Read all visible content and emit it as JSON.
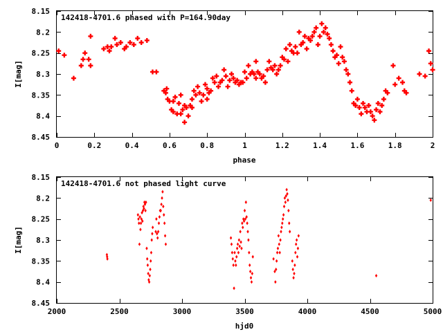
{
  "colors": {
    "point": "#ff0000",
    "axis": "#000000",
    "background": "#ffffff"
  },
  "chart_data": [
    {
      "type": "scatter",
      "title": "142418-4701.6 phased with P=164.90day",
      "xlabel": "phase",
      "ylabel": "I[mag]",
      "xlim": [
        0,
        2
      ],
      "ylim": [
        8.45,
        8.15
      ],
      "y_inverted": true,
      "grid": false,
      "legend": "none",
      "marker": "star",
      "xticks": [
        "0",
        "0.2",
        "0.4",
        "0.6",
        "0.8",
        "1",
        "1.2",
        "1.4",
        "1.6",
        "1.8",
        "2"
      ],
      "xtick_values": [
        0,
        0.2,
        0.4,
        0.6,
        0.8,
        1.0,
        1.2,
        1.4,
        1.6,
        1.8,
        2.0
      ],
      "yticks": [
        "8.15",
        "8.2",
        "8.25",
        "8.3",
        "8.35",
        "8.4",
        "8.45"
      ],
      "ytick_values": [
        8.15,
        8.2,
        8.25,
        8.3,
        8.35,
        8.4,
        8.45
      ],
      "points": [
        [
          0.01,
          8.245
        ],
        [
          0.04,
          8.255
        ],
        [
          0.09,
          8.31
        ],
        [
          0.13,
          8.28
        ],
        [
          0.14,
          8.265
        ],
        [
          0.15,
          8.25
        ],
        [
          0.17,
          8.265
        ],
        [
          0.18,
          8.28
        ],
        [
          0.18,
          8.21
        ],
        [
          0.25,
          8.24
        ],
        [
          0.27,
          8.235
        ],
        [
          0.28,
          8.245
        ],
        [
          0.29,
          8.235
        ],
        [
          0.31,
          8.215
        ],
        [
          0.32,
          8.23
        ],
        [
          0.34,
          8.225
        ],
        [
          0.36,
          8.24
        ],
        [
          0.37,
          8.235
        ],
        [
          0.39,
          8.225
        ],
        [
          0.41,
          8.23
        ],
        [
          0.43,
          8.215
        ],
        [
          0.45,
          8.225
        ],
        [
          0.48,
          8.22
        ],
        [
          0.51,
          8.295
        ],
        [
          0.53,
          8.295
        ],
        [
          0.57,
          8.34
        ],
        [
          0.58,
          8.345
        ],
        [
          0.585,
          8.335
        ],
        [
          0.59,
          8.36
        ],
        [
          0.6,
          8.365
        ],
        [
          0.61,
          8.385
        ],
        [
          0.62,
          8.39
        ],
        [
          0.62,
          8.365
        ],
        [
          0.63,
          8.355
        ],
        [
          0.64,
          8.395
        ],
        [
          0.65,
          8.37
        ],
        [
          0.66,
          8.35
        ],
        [
          0.66,
          8.395
        ],
        [
          0.67,
          8.385
        ],
        [
          0.68,
          8.375
        ],
        [
          0.68,
          8.415
        ],
        [
          0.69,
          8.38
        ],
        [
          0.7,
          8.4
        ],
        [
          0.71,
          8.375
        ],
        [
          0.72,
          8.38
        ],
        [
          0.72,
          8.36
        ],
        [
          0.73,
          8.34
        ],
        [
          0.74,
          8.35
        ],
        [
          0.75,
          8.33
        ],
        [
          0.76,
          8.345
        ],
        [
          0.77,
          8.365
        ],
        [
          0.78,
          8.35
        ],
        [
          0.79,
          8.325
        ],
        [
          0.8,
          8.36
        ],
        [
          0.8,
          8.335
        ],
        [
          0.81,
          8.345
        ],
        [
          0.82,
          8.34
        ],
        [
          0.83,
          8.31
        ],
        [
          0.84,
          8.32
        ],
        [
          0.85,
          8.305
        ],
        [
          0.86,
          8.33
        ],
        [
          0.87,
          8.32
        ],
        [
          0.88,
          8.315
        ],
        [
          0.89,
          8.29
        ],
        [
          0.9,
          8.305
        ],
        [
          0.91,
          8.33
        ],
        [
          0.92,
          8.315
        ],
        [
          0.93,
          8.3
        ],
        [
          0.94,
          8.31
        ],
        [
          0.95,
          8.32
        ],
        [
          0.96,
          8.315
        ],
        [
          0.97,
          8.325
        ],
        [
          0.98,
          8.32
        ],
        [
          0.99,
          8.32
        ],
        [
          1.0,
          8.295
        ],
        [
          1.01,
          8.31
        ],
        [
          1.02,
          8.28
        ],
        [
          1.03,
          8.3
        ],
        [
          1.04,
          8.295
        ],
        [
          1.05,
          8.3
        ],
        [
          1.06,
          8.27
        ],
        [
          1.06,
          8.31
        ],
        [
          1.07,
          8.295
        ],
        [
          1.08,
          8.3
        ],
        [
          1.09,
          8.31
        ],
        [
          1.1,
          8.305
        ],
        [
          1.11,
          8.32
        ],
        [
          1.12,
          8.29
        ],
        [
          1.13,
          8.27
        ],
        [
          1.14,
          8.285
        ],
        [
          1.15,
          8.29
        ],
        [
          1.16,
          8.28
        ],
        [
          1.17,
          8.3
        ],
        [
          1.18,
          8.29
        ],
        [
          1.19,
          8.28
        ],
        [
          1.2,
          8.26
        ],
        [
          1.21,
          8.265
        ],
        [
          1.22,
          8.24
        ],
        [
          1.23,
          8.27
        ],
        [
          1.24,
          8.23
        ],
        [
          1.25,
          8.245
        ],
        [
          1.26,
          8.25
        ],
        [
          1.27,
          8.235
        ],
        [
          1.28,
          8.25
        ],
        [
          1.29,
          8.2
        ],
        [
          1.3,
          8.23
        ],
        [
          1.31,
          8.225
        ],
        [
          1.32,
          8.21
        ],
        [
          1.33,
          8.24
        ],
        [
          1.34,
          8.215
        ],
        [
          1.35,
          8.22
        ],
        [
          1.36,
          8.21
        ],
        [
          1.37,
          8.2
        ],
        [
          1.38,
          8.19
        ],
        [
          1.39,
          8.23
        ],
        [
          1.4,
          8.21
        ],
        [
          1.41,
          8.18
        ],
        [
          1.42,
          8.2
        ],
        [
          1.43,
          8.19
        ],
        [
          1.44,
          8.205
        ],
        [
          1.45,
          8.215
        ],
        [
          1.46,
          8.23
        ],
        [
          1.47,
          8.245
        ],
        [
          1.48,
          8.26
        ],
        [
          1.49,
          8.255
        ],
        [
          1.5,
          8.275
        ],
        [
          1.51,
          8.235
        ],
        [
          1.52,
          8.26
        ],
        [
          1.53,
          8.27
        ],
        [
          1.54,
          8.29
        ],
        [
          1.55,
          8.3
        ],
        [
          1.56,
          8.32
        ],
        [
          1.57,
          8.34
        ],
        [
          1.58,
          8.37
        ],
        [
          1.59,
          8.375
        ],
        [
          1.6,
          8.36
        ],
        [
          1.61,
          8.38
        ],
        [
          1.62,
          8.395
        ],
        [
          1.63,
          8.37
        ],
        [
          1.64,
          8.38
        ],
        [
          1.65,
          8.39
        ],
        [
          1.66,
          8.375
        ],
        [
          1.67,
          8.39
        ],
        [
          1.68,
          8.4
        ],
        [
          1.69,
          8.41
        ],
        [
          1.7,
          8.385
        ],
        [
          1.71,
          8.37
        ],
        [
          1.72,
          8.39
        ],
        [
          1.73,
          8.375
        ],
        [
          1.74,
          8.36
        ],
        [
          1.75,
          8.34
        ],
        [
          1.76,
          8.345
        ],
        [
          1.79,
          8.28
        ],
        [
          1.8,
          8.325
        ],
        [
          1.82,
          8.31
        ],
        [
          1.84,
          8.32
        ],
        [
          1.85,
          8.34
        ],
        [
          1.86,
          8.345
        ],
        [
          1.93,
          8.3
        ],
        [
          1.96,
          8.305
        ],
        [
          1.98,
          8.245
        ],
        [
          1.99,
          8.275
        ],
        [
          2.0,
          8.29
        ]
      ]
    },
    {
      "type": "scatter",
      "title": "142418-4701.6 not phased light curve",
      "xlabel": "hjd0",
      "ylabel": "I[mag]",
      "xlim": [
        2000,
        5000
      ],
      "ylim": [
        8.45,
        8.15
      ],
      "y_inverted": true,
      "grid": false,
      "legend": "none",
      "marker": "diamond",
      "xticks": [
        "2000",
        "2500",
        "3000",
        "3500",
        "4000",
        "4500",
        "5000"
      ],
      "xtick_values": [
        2000,
        2500,
        3000,
        3500,
        4000,
        4500,
        5000
      ],
      "yticks": [
        "8.15",
        "8.2",
        "8.25",
        "8.3",
        "8.35",
        "8.4",
        "8.45"
      ],
      "ytick_values": [
        8.15,
        8.2,
        8.25,
        8.3,
        8.35,
        8.4,
        8.45
      ],
      "points": [
        [
          2400,
          8.335
        ],
        [
          2402,
          8.34
        ],
        [
          2404,
          8.345
        ],
        [
          2648,
          8.24
        ],
        [
          2652,
          8.25
        ],
        [
          2656,
          8.26
        ],
        [
          2660,
          8.31
        ],
        [
          2664,
          8.245
        ],
        [
          2668,
          8.275
        ],
        [
          2672,
          8.26
        ],
        [
          2676,
          8.25
        ],
        [
          2680,
          8.235
        ],
        [
          2684,
          8.255
        ],
        [
          2688,
          8.23
        ],
        [
          2692,
          8.22
        ],
        [
          2696,
          8.225
        ],
        [
          2700,
          8.21
        ],
        [
          2704,
          8.215
        ],
        [
          2708,
          8.23
        ],
        [
          2712,
          8.21
        ],
        [
          2718,
          8.32
        ],
        [
          2722,
          8.345
        ],
        [
          2726,
          8.36
        ],
        [
          2730,
          8.38
        ],
        [
          2734,
          8.395
        ],
        [
          2738,
          8.4
        ],
        [
          2742,
          8.385
        ],
        [
          2746,
          8.37
        ],
        [
          2750,
          8.35
        ],
        [
          2754,
          8.33
        ],
        [
          2758,
          8.3
        ],
        [
          2762,
          8.285
        ],
        [
          2766,
          8.27
        ],
        [
          2790,
          8.28
        ],
        [
          2795,
          8.25
        ],
        [
          2800,
          8.285
        ],
        [
          2805,
          8.295
        ],
        [
          2810,
          8.28
        ],
        [
          2815,
          8.26
        ],
        [
          2820,
          8.245
        ],
        [
          2825,
          8.23
        ],
        [
          2830,
          8.23
        ],
        [
          2835,
          8.215
        ],
        [
          2840,
          8.2
        ],
        [
          2845,
          8.185
        ],
        [
          2850,
          8.22
        ],
        [
          2855,
          8.24
        ],
        [
          2860,
          8.26
        ],
        [
          2865,
          8.29
        ],
        [
          2870,
          8.31
        ],
        [
          3390,
          8.295
        ],
        [
          3395,
          8.31
        ],
        [
          3400,
          8.33
        ],
        [
          3405,
          8.345
        ],
        [
          3410,
          8.36
        ],
        [
          3415,
          8.415
        ],
        [
          3420,
          8.33
        ],
        [
          3425,
          8.35
        ],
        [
          3430,
          8.36
        ],
        [
          3435,
          8.34
        ],
        [
          3440,
          8.32
        ],
        [
          3445,
          8.31
        ],
        [
          3450,
          8.33
        ],
        [
          3455,
          8.3
        ],
        [
          3460,
          8.315
        ],
        [
          3465,
          8.28
        ],
        [
          3470,
          8.305
        ],
        [
          3475,
          8.32
        ],
        [
          3480,
          8.26
        ],
        [
          3485,
          8.27
        ],
        [
          3490,
          8.25
        ],
        [
          3495,
          8.255
        ],
        [
          3500,
          8.23
        ],
        [
          3505,
          8.25
        ],
        [
          3510,
          8.21
        ],
        [
          3515,
          8.245
        ],
        [
          3520,
          8.26
        ],
        [
          3525,
          8.28
        ],
        [
          3530,
          8.3
        ],
        [
          3535,
          8.33
        ],
        [
          3540,
          8.36
        ],
        [
          3545,
          8.375
        ],
        [
          3550,
          8.39
        ],
        [
          3555,
          8.4
        ],
        [
          3560,
          8.38
        ],
        [
          3565,
          8.34
        ],
        [
          3730,
          8.345
        ],
        [
          3740,
          8.375
        ],
        [
          3745,
          8.4
        ],
        [
          3750,
          8.37
        ],
        [
          3755,
          8.35
        ],
        [
          3760,
          8.33
        ],
        [
          3765,
          8.32
        ],
        [
          3770,
          8.29
        ],
        [
          3775,
          8.31
        ],
        [
          3780,
          8.33
        ],
        [
          3785,
          8.3
        ],
        [
          3790,
          8.28
        ],
        [
          3795,
          8.27
        ],
        [
          3800,
          8.26
        ],
        [
          3805,
          8.25
        ],
        [
          3810,
          8.24
        ],
        [
          3815,
          8.22
        ],
        [
          3820,
          8.2
        ],
        [
          3825,
          8.21
        ],
        [
          3830,
          8.195
        ],
        [
          3835,
          8.18
        ],
        [
          3840,
          8.19
        ],
        [
          3845,
          8.205
        ],
        [
          3850,
          8.23
        ],
        [
          3855,
          8.26
        ],
        [
          3860,
          8.28
        ],
        [
          3880,
          8.35
        ],
        [
          3885,
          8.37
        ],
        [
          3890,
          8.39
        ],
        [
          3895,
          8.38
        ],
        [
          3900,
          8.36
        ],
        [
          3905,
          8.33
        ],
        [
          3910,
          8.31
        ],
        [
          3915,
          8.3
        ],
        [
          3920,
          8.34
        ],
        [
          3925,
          8.32
        ],
        [
          3930,
          8.29
        ],
        [
          4550,
          8.385
        ],
        [
          4985,
          8.205
        ]
      ]
    }
  ]
}
